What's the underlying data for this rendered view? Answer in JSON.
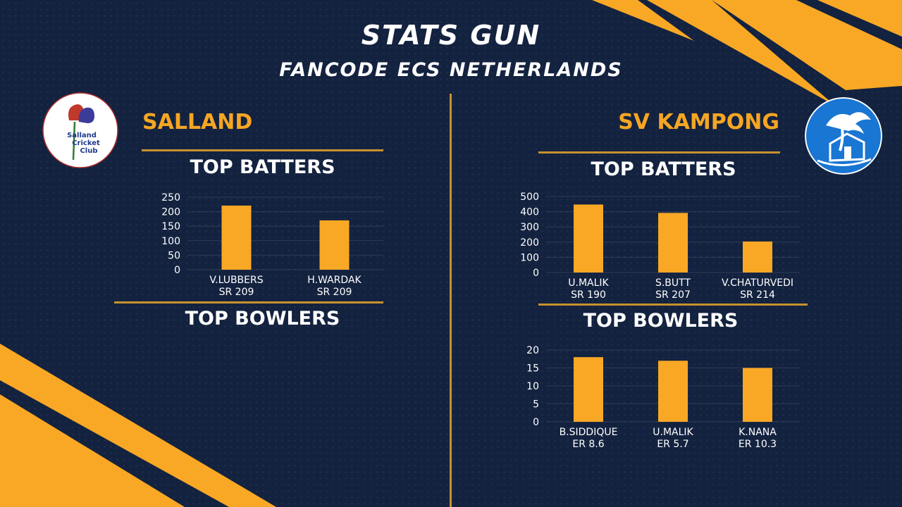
{
  "header": {
    "title": "STATS GUN",
    "subtitle": "FANCODE ECS NETHERLANDS"
  },
  "colors": {
    "background": "#13223f",
    "accent": "#f6a623",
    "bar": "#f9a825",
    "text": "#ffffff"
  },
  "left": {
    "team": "SALLAND",
    "logo_text": [
      "Salland",
      "Cricket",
      "Club"
    ],
    "batters_heading": "TOP BATTERS",
    "bowlers_heading": "TOP BOWLERS"
  },
  "right": {
    "team": "SV KAMPONG",
    "batters_heading": "TOP BATTERS",
    "bowlers_heading": "TOP BOWLERS"
  },
  "chart_data": [
    {
      "id": "salland-batters",
      "type": "bar",
      "categories": [
        "V.LUBBERS",
        "H.WARDAK"
      ],
      "sublabels": [
        "SR 209",
        "SR 209"
      ],
      "values": [
        221,
        170
      ],
      "ylim": [
        0,
        250
      ],
      "yticks": [
        0,
        50,
        100,
        150,
        200,
        250
      ],
      "grid": true
    },
    {
      "id": "kampong-batters",
      "type": "bar",
      "categories": [
        "U.MALIK",
        "S.BUTT",
        "V.CHATURVEDI"
      ],
      "sublabels": [
        "SR 190",
        "SR 207",
        "SR 214"
      ],
      "values": [
        447,
        392,
        204
      ],
      "ylim": [
        0,
        500
      ],
      "yticks": [
        0,
        100,
        200,
        300,
        400,
        500
      ],
      "grid": true
    },
    {
      "id": "kampong-bowlers",
      "type": "bar",
      "categories": [
        "B.SIDDIQUE",
        "U.MALIK",
        "K.NANA"
      ],
      "sublabels": [
        "ER 8.6",
        "ER 5.7",
        "ER 10.3"
      ],
      "values": [
        18,
        17,
        15
      ],
      "ylim": [
        0,
        20
      ],
      "yticks": [
        0,
        5,
        10,
        15,
        20
      ],
      "grid": true
    }
  ]
}
